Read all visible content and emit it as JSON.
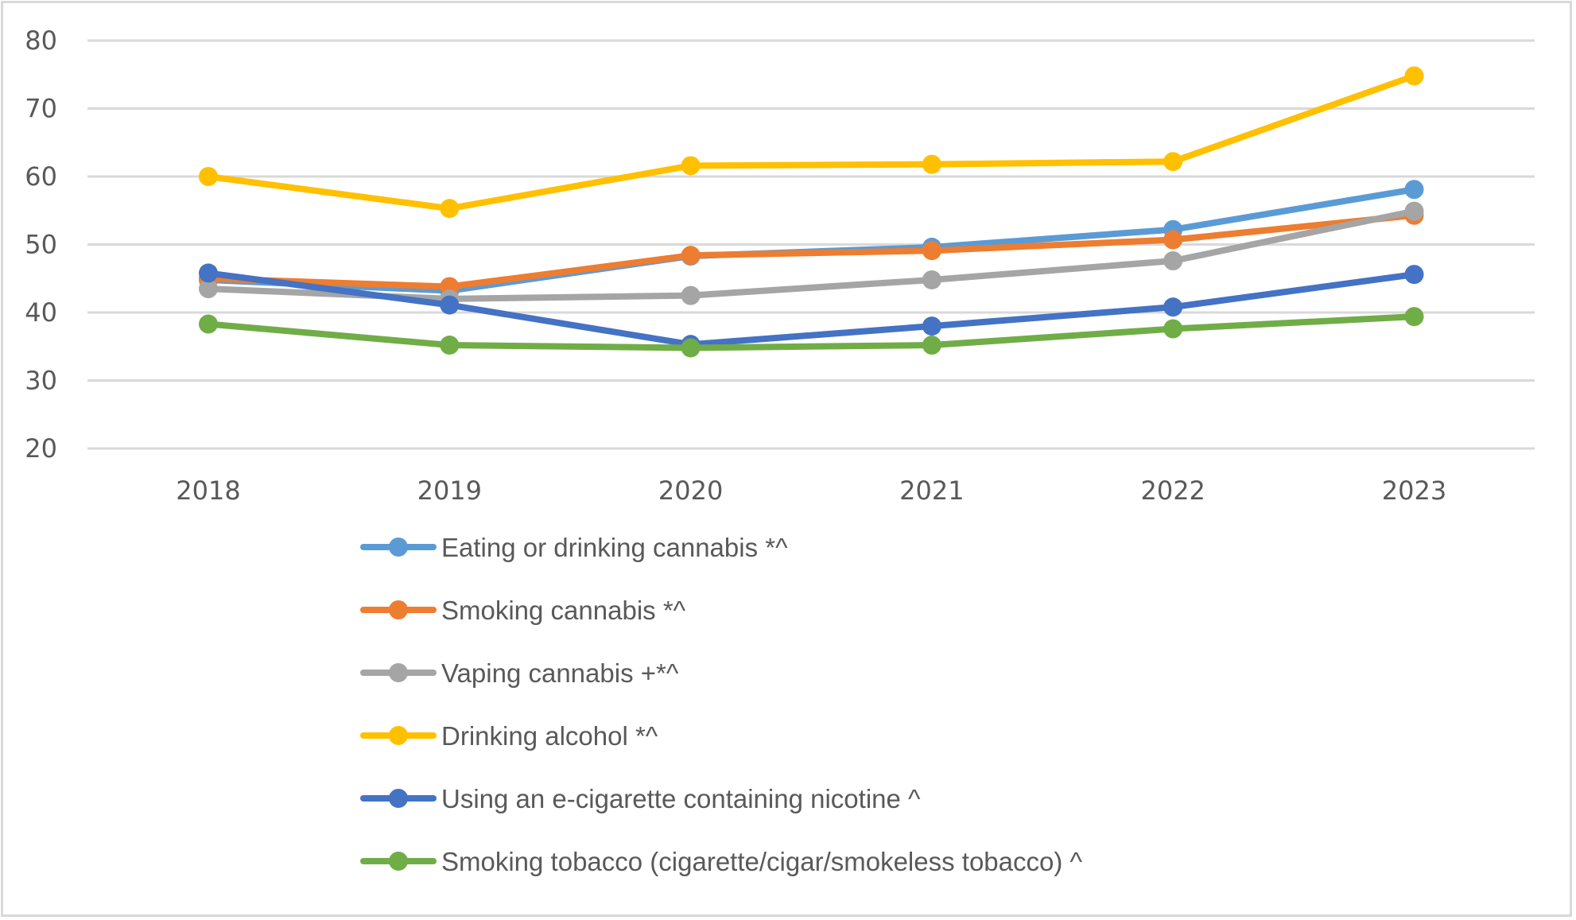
{
  "chart_data": {
    "type": "line",
    "title": "",
    "xlabel": "",
    "ylabel": "",
    "categories": [
      "2018",
      "2019",
      "2020",
      "2021",
      "2022",
      "2023"
    ],
    "ylim": [
      20,
      80
    ],
    "yticks": [
      "20",
      "30",
      "40",
      "50",
      "60",
      "70",
      "80"
    ],
    "ytick_values": [
      20,
      30,
      40,
      50,
      60,
      70,
      80
    ],
    "grid": true,
    "legend_position": "bottom",
    "series": [
      {
        "name": "Eating or drinking cannabis *^",
        "color": "#5B9BD5",
        "values": [
          44.8,
          43.2,
          48.3,
          49.6,
          52.2,
          58.1
        ]
      },
      {
        "name": "Smoking cannabis *^",
        "color": "#ED7D31",
        "values": [
          45.0,
          43.8,
          48.4,
          49.1,
          50.7,
          54.3
        ]
      },
      {
        "name": "Vaping cannabis +*^",
        "color": "#A5A5A5",
        "values": [
          43.5,
          42.0,
          42.5,
          44.8,
          47.6,
          54.9
        ]
      },
      {
        "name": "Drinking alcohol *^",
        "color": "#FFC000",
        "values": [
          60.0,
          55.3,
          61.6,
          61.8,
          62.2,
          74.8
        ]
      },
      {
        "name": "Using an e-cigarette containing nicotine ^",
        "color": "#4472C4",
        "values": [
          45.8,
          41.1,
          35.3,
          38.0,
          40.8,
          45.6
        ]
      },
      {
        "name": "Smoking tobacco (cigarette/cigar/smokeless tobacco) ^",
        "color": "#70AD47",
        "values": [
          38.3,
          35.2,
          34.8,
          35.2,
          37.6,
          39.4
        ]
      }
    ]
  }
}
